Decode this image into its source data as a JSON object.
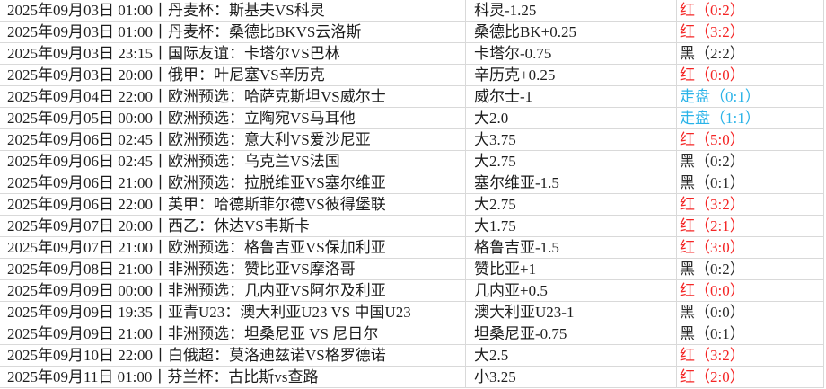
{
  "colors": {
    "red": "#f42525",
    "black": "#2b2b2b",
    "blue": "#2ab3e8",
    "text": "#1d1d1d",
    "gridline": "#d9d9d9",
    "background": "#ffffff"
  },
  "table": {
    "columns": [
      "match",
      "handicap",
      "result"
    ],
    "rows": [
      {
        "match": "2025年09月03日  01:00丨丹麦杯：斯基夫VS科灵",
        "handicap": "科灵-1.25",
        "result": "红（0:2）",
        "color": "red"
      },
      {
        "match": "2025年09月03日  01:00丨丹麦杯：桑德比BKVS云洛斯",
        "handicap": "桑德比BK+0.25",
        "result": "红（3:2）",
        "color": "red"
      },
      {
        "match": "2025年09月03日  23:15丨国际友谊：卡塔尔VS巴林",
        "handicap": "卡塔尔-0.75",
        "result": "黑（2:2）",
        "color": "black"
      },
      {
        "match": "2025年09月03日  20:00丨俄甲：叶尼塞VS辛历克",
        "handicap": "辛历克+0.25",
        "result": "红（0:0）",
        "color": "red"
      },
      {
        "match": "2025年09月04日  22:00丨欧洲预选：哈萨克斯坦VS威尔士",
        "handicap": "威尔士-1",
        "result": "走盘（0:1）",
        "color": "blue"
      },
      {
        "match": "2025年09月05日  00:00丨欧洲预选：立陶宛VS马耳他",
        "handicap": "大2.0",
        "result": "走盘（1:1）",
        "color": "blue"
      },
      {
        "match": "2025年09月06日  02:45丨欧洲预选：意大利VS爱沙尼亚",
        "handicap": "大3.75",
        "result": "红（5:0）",
        "color": "red"
      },
      {
        "match": "2025年09月06日  02:45丨欧洲预选：乌克兰VS法国",
        "handicap": "大2.75",
        "result": "黑（0:2）",
        "color": "black"
      },
      {
        "match": "2025年09月06日  21:00丨欧洲预选：拉脱维亚VS塞尔维亚",
        "handicap": "塞尔维亚-1.5",
        "result": "黑（0:1）",
        "color": "black"
      },
      {
        "match": "2025年09月06日  22:00丨英甲：哈德斯菲尔德VS彼得堡联",
        "handicap": "大2.75",
        "result": "红（3:2）",
        "color": "red"
      },
      {
        "match": "2025年09月07日  20:00丨西乙：休达VS韦斯卡",
        "handicap": "大1.75",
        "result": "红（2:1）",
        "color": "red"
      },
      {
        "match": "2025年09月07日  21:00丨欧洲预选：格鲁吉亚VS保加利亚",
        "handicap": "格鲁吉亚-1.5",
        "result": "红（3:0）",
        "color": "red"
      },
      {
        "match": "2025年09月08日  21:00丨非洲预选：赞比亚VS摩洛哥",
        "handicap": "赞比亚+1",
        "result": "黑（0:2）",
        "color": "black"
      },
      {
        "match": "2025年09月09日  00:00丨非洲预选：几内亚VS阿尔及利亚",
        "handicap": "几内亚+0.5",
        "result": "红（0:0）",
        "color": "red"
      },
      {
        "match": "2025年09月09日  19:35丨亚青U23：澳大利亚U23 VS 中国U23",
        "handicap": "澳大利亚U23-1",
        "result": "黑（0:0）",
        "color": "black"
      },
      {
        "match": "2025年09月09日  21:00丨非洲预选：坦桑尼亚 VS 尼日尔",
        "handicap": "坦桑尼亚-0.75",
        "result": "黑（0:1）",
        "color": "black"
      },
      {
        "match": "2025年09月10日  22:00丨白俄超：莫洛迪兹诺VS格罗德诺",
        "handicap": "大2.5",
        "result": "红（3:2）",
        "color": "red"
      },
      {
        "match": "2025年09月11日  01:00丨芬兰杯：古比斯vs查路",
        "handicap": "小3.25",
        "result": "红（2:0）",
        "color": "red"
      }
    ]
  }
}
